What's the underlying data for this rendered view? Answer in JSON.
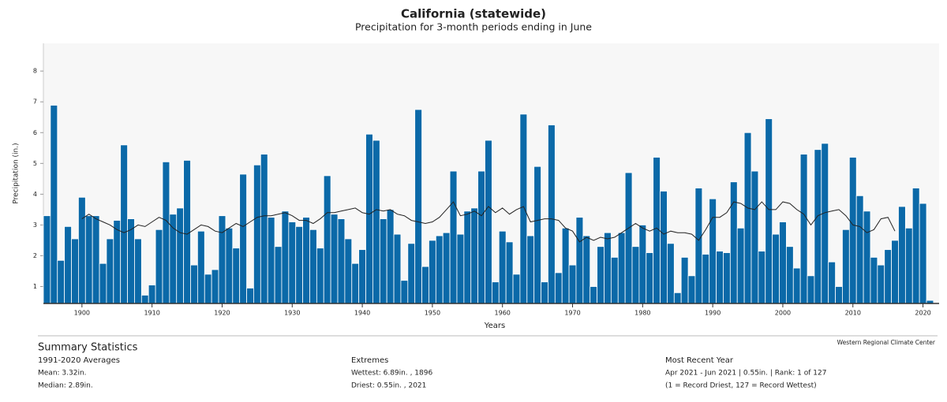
{
  "chart_data": {
    "type": "bar",
    "title": "California (statewide)",
    "subtitle": "Precipitation for 3-month periods ending in June",
    "x_label": "Years",
    "y_label": "Precipitation (in.)",
    "source": "Western Regional Climate Center",
    "color": "#0b69a8",
    "line_color": "#222222",
    "x": [
      1895,
      1896,
      1897,
      1898,
      1899,
      1900,
      1901,
      1902,
      1903,
      1904,
      1905,
      1906,
      1907,
      1908,
      1909,
      1910,
      1911,
      1912,
      1913,
      1914,
      1915,
      1916,
      1917,
      1918,
      1919,
      1920,
      1921,
      1922,
      1923,
      1924,
      1925,
      1926,
      1927,
      1928,
      1929,
      1930,
      1931,
      1932,
      1933,
      1934,
      1935,
      1936,
      1937,
      1938,
      1939,
      1940,
      1941,
      1942,
      1943,
      1944,
      1945,
      1946,
      1947,
      1948,
      1949,
      1950,
      1951,
      1952,
      1953,
      1954,
      1955,
      1956,
      1957,
      1958,
      1959,
      1960,
      1961,
      1962,
      1963,
      1964,
      1965,
      1966,
      1967,
      1968,
      1969,
      1970,
      1971,
      1972,
      1973,
      1974,
      1975,
      1976,
      1977,
      1978,
      1979,
      1980,
      1981,
      1982,
      1983,
      1984,
      1985,
      1986,
      1987,
      1988,
      1989,
      1990,
      1991,
      1992,
      1993,
      1994,
      1995,
      1996,
      1997,
      1998,
      1999,
      2000,
      2001,
      2002,
      2003,
      2004,
      2005,
      2006,
      2007,
      2008,
      2009,
      2010,
      2011,
      2012,
      2013,
      2014,
      2015,
      2016,
      2017,
      2018,
      2019,
      2020,
      2021
    ],
    "values": [
      3.3,
      6.89,
      1.85,
      2.95,
      2.55,
      3.9,
      3.3,
      3.3,
      1.75,
      2.55,
      3.15,
      5.6,
      3.2,
      2.55,
      0.72,
      1.05,
      2.85,
      5.05,
      3.35,
      3.55,
      5.1,
      1.7,
      2.8,
      1.4,
      1.55,
      3.3,
      2.9,
      2.25,
      4.65,
      0.95,
      4.95,
      5.3,
      3.25,
      2.3,
      3.45,
      3.1,
      2.95,
      3.25,
      2.85,
      2.25,
      4.6,
      3.35,
      3.2,
      2.55,
      1.75,
      2.2,
      5.95,
      5.75,
      3.2,
      3.5,
      2.7,
      1.2,
      2.4,
      6.75,
      1.65,
      2.5,
      2.65,
      2.75,
      4.75,
      2.7,
      3.45,
      3.55,
      4.75,
      5.75,
      1.15,
      2.8,
      2.45,
      1.4,
      6.6,
      2.65,
      4.9,
      1.15,
      6.25,
      1.45,
      2.9,
      1.7,
      3.25,
      2.65,
      1.0,
      2.3,
      2.75,
      1.95,
      2.75,
      4.7,
      2.3,
      3.0,
      2.1,
      5.2,
      4.1,
      2.4,
      0.8,
      1.95,
      1.35,
      4.2,
      2.05,
      3.85,
      2.15,
      2.1,
      4.4,
      2.9,
      6.0,
      4.75,
      2.15,
      6.45,
      2.7,
      3.1,
      2.3,
      1.6,
      5.3,
      1.35,
      5.45,
      5.65,
      1.8,
      1.0,
      2.85,
      5.2,
      3.95,
      3.45,
      1.95,
      1.7,
      2.2,
      2.5,
      3.6,
      2.9,
      4.2,
      3.7,
      0.55
    ],
    "line_values": [
      null,
      null,
      null,
      null,
      null,
      3.2,
      3.35,
      3.2,
      3.1,
      3.0,
      2.85,
      2.75,
      2.85,
      3.0,
      2.95,
      3.1,
      3.25,
      3.15,
      2.9,
      2.75,
      2.7,
      2.85,
      3.0,
      2.95,
      2.8,
      2.75,
      2.9,
      3.05,
      2.95,
      3.1,
      3.25,
      3.3,
      3.3,
      3.35,
      3.4,
      3.3,
      3.15,
      3.15,
      3.05,
      3.2,
      3.4,
      3.4,
      3.45,
      3.5,
      3.55,
      3.4,
      3.35,
      3.5,
      3.45,
      3.5,
      3.35,
      3.3,
      3.15,
      3.1,
      3.05,
      3.1,
      3.25,
      3.5,
      3.75,
      3.3,
      3.35,
      3.45,
      3.3,
      3.6,
      3.4,
      3.55,
      3.35,
      3.5,
      3.6,
      3.1,
      3.15,
      3.2,
      3.2,
      3.15,
      2.9,
      2.8,
      2.45,
      2.6,
      2.5,
      2.6,
      2.55,
      2.6,
      2.75,
      2.9,
      3.05,
      2.9,
      2.8,
      2.9,
      2.7,
      2.8,
      2.75,
      2.75,
      2.7,
      2.5,
      2.85,
      3.25,
      3.25,
      3.4,
      3.75,
      3.7,
      3.55,
      3.5,
      3.75,
      3.5,
      3.5,
      3.75,
      3.7,
      3.5,
      3.35,
      3.0,
      3.3,
      3.4,
      3.45,
      3.5,
      3.3,
      3.0,
      2.95,
      2.75,
      2.85,
      3.2,
      3.25,
      2.8,
      null,
      null,
      null,
      null,
      null
    ],
    "xlim": [
      1894.5,
      2022.3
    ],
    "xticks": [
      1900,
      1910,
      1920,
      1930,
      1940,
      1950,
      1960,
      1970,
      1980,
      1990,
      2000,
      2010,
      2020
    ],
    "ylim": [
      0.45,
      8.9
    ],
    "yticks": [
      1,
      2,
      3,
      4,
      5,
      6,
      7,
      8
    ]
  },
  "summary": {
    "title": "Summary Statistics",
    "columns": [
      {
        "heading": "1991-2020 Averages",
        "lines": [
          "Mean: 3.32in.",
          "Median: 2.89in."
        ]
      },
      {
        "heading": "Extremes",
        "lines": [
          "Wettest: 6.89in. , 1896",
          "Driest: 0.55in. , 2021"
        ]
      },
      {
        "heading": "Most Recent Year",
        "lines": [
          "Apr 2021 - Jun 2021 | 0.55in. | Rank: 1 of 127",
          "(1 = Record Driest, 127 = Record Wettest)"
        ]
      }
    ]
  }
}
